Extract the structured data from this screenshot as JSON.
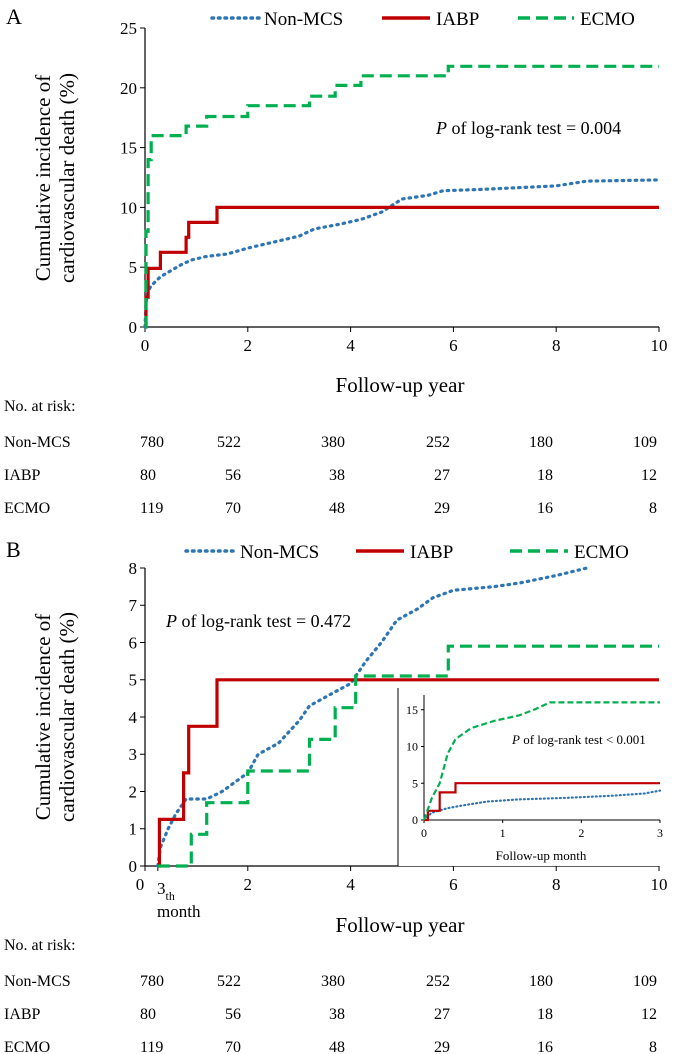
{
  "panels": [
    {
      "id": "A",
      "panel_label": "A",
      "legend": [
        "Non-MCS",
        "IABP",
        "ECMO"
      ],
      "pvalue_prefix": "P",
      "pvalue_text": " of log-rank test = 0.004",
      "risk_title": "No. at risk:",
      "risk_table": [
        {
          "group": "Non-MCS",
          "values": [
            "780",
            "522",
            "380",
            "252",
            "180",
            "109"
          ]
        },
        {
          "group": "IABP",
          "values": [
            "80",
            "56",
            "38",
            "27",
            "18",
            "12"
          ]
        },
        {
          "group": "ECMO",
          "values": [
            "119",
            "70",
            "48",
            "29",
            "16",
            "8"
          ]
        }
      ]
    },
    {
      "id": "B",
      "panel_label": "B",
      "legend": [
        "Non-MCS",
        "IABP",
        "ECMO"
      ],
      "pvalue_prefix": "P",
      "pvalue_text": " of log-rank test = 0.472",
      "extra_tick": {
        "main": "3",
        "sub": "th",
        "below": "month"
      },
      "inset": {
        "pvalue_prefix": "P",
        "pvalue_text": " of log-rank test < 0.001",
        "xlabel": "Follow-up month"
      },
      "risk_title": "No. at risk:",
      "risk_table": [
        {
          "group": "Non-MCS",
          "values": [
            "780",
            "522",
            "380",
            "252",
            "180",
            "109"
          ]
        },
        {
          "group": "IABP",
          "values": [
            "80",
            "56",
            "38",
            "27",
            "18",
            "12"
          ]
        },
        {
          "group": "ECMO",
          "values": [
            "119",
            "70",
            "48",
            "29",
            "16",
            "8"
          ]
        }
      ]
    }
  ],
  "chart_data": [
    {
      "type": "line",
      "title": "A",
      "xlabel": "Follow-up year",
      "ylabel": "Cumulative incidence of cardiovascular death (%)",
      "xlim": [
        0,
        10
      ],
      "ylim": [
        0,
        25
      ],
      "xticks": [
        0,
        2,
        4,
        6,
        8,
        10
      ],
      "yticks": [
        0,
        5,
        10,
        15,
        20,
        25
      ],
      "series": [
        {
          "name": "Non-MCS",
          "color": "#2e75b6",
          "style": "dotted",
          "points": [
            [
              0,
              0
            ],
            [
              0.02,
              2.0
            ],
            [
              0.05,
              2.8
            ],
            [
              0.1,
              3.3
            ],
            [
              0.2,
              3.8
            ],
            [
              0.3,
              4.2
            ],
            [
              0.5,
              4.7
            ],
            [
              0.7,
              5.2
            ],
            [
              0.9,
              5.6
            ],
            [
              1.2,
              5.9
            ],
            [
              1.6,
              6.1
            ],
            [
              2.0,
              6.6
            ],
            [
              2.4,
              7.0
            ],
            [
              3.0,
              7.6
            ],
            [
              3.3,
              8.2
            ],
            [
              3.8,
              8.6
            ],
            [
              4.2,
              9.0
            ],
            [
              4.6,
              9.6
            ],
            [
              5.0,
              10.7
            ],
            [
              5.5,
              11.0
            ],
            [
              5.8,
              11.4
            ],
            [
              6.5,
              11.5
            ],
            [
              7.0,
              11.6
            ],
            [
              8.0,
              11.8
            ],
            [
              8.6,
              12.2
            ],
            [
              10,
              12.3
            ]
          ]
        },
        {
          "name": "IABP",
          "color": "#c00000",
          "style": "solid",
          "step": true,
          "points": [
            [
              0,
              0
            ],
            [
              0.02,
              2.5
            ],
            [
              0.06,
              4.9
            ],
            [
              0.3,
              6.25
            ],
            [
              0.8,
              7.5
            ],
            [
              0.85,
              8.75
            ],
            [
              1.4,
              10.0
            ],
            [
              10,
              10.0
            ]
          ]
        },
        {
          "name": "ECMO",
          "color": "#00b050",
          "style": "dashed",
          "step": true,
          "points": [
            [
              0,
              0
            ],
            [
              0.02,
              8.0
            ],
            [
              0.06,
              14.0
            ],
            [
              0.12,
              16.0
            ],
            [
              0.8,
              16.8
            ],
            [
              1.2,
              17.6
            ],
            [
              2.0,
              18.5
            ],
            [
              3.2,
              19.3
            ],
            [
              3.7,
              20.2
            ],
            [
              4.2,
              21.0
            ],
            [
              5.9,
              21.8
            ],
            [
              10,
              21.8
            ]
          ]
        }
      ]
    },
    {
      "type": "line",
      "title": "B",
      "xlabel": "Follow-up year",
      "ylabel": "Cumulative incidence of cardiovascular death (%)",
      "xlim": [
        0,
        10
      ],
      "ylim": [
        0,
        8
      ],
      "xticks": [
        0,
        2,
        4,
        6,
        8,
        10
      ],
      "yticks": [
        0,
        1,
        2,
        3,
        4,
        5,
        6,
        7,
        8
      ],
      "series": [
        {
          "name": "Non-MCS",
          "color": "#2e75b6",
          "style": "dotted",
          "points": [
            [
              0.25,
              0
            ],
            [
              0.3,
              0.5
            ],
            [
              0.45,
              1.0
            ],
            [
              0.6,
              1.4
            ],
            [
              0.8,
              1.8
            ],
            [
              1.2,
              1.8
            ],
            [
              1.5,
              2.0
            ],
            [
              1.8,
              2.3
            ],
            [
              2.0,
              2.5
            ],
            [
              2.2,
              3.0
            ],
            [
              2.6,
              3.3
            ],
            [
              3.0,
              3.9
            ],
            [
              3.2,
              4.3
            ],
            [
              3.6,
              4.6
            ],
            [
              4.0,
              4.9
            ],
            [
              4.3,
              5.5
            ],
            [
              4.6,
              6.0
            ],
            [
              4.9,
              6.6
            ],
            [
              5.3,
              6.9
            ],
            [
              5.6,
              7.2
            ],
            [
              6.0,
              7.4
            ],
            [
              6.8,
              7.5
            ],
            [
              7.3,
              7.6
            ],
            [
              8.0,
              7.8
            ],
            [
              8.6,
              8.0
            ]
          ]
        },
        {
          "name": "IABP",
          "color": "#c00000",
          "style": "solid",
          "step": true,
          "points": [
            [
              0.25,
              0
            ],
            [
              0.28,
              1.25
            ],
            [
              0.75,
              2.5
            ],
            [
              0.85,
              3.75
            ],
            [
              1.4,
              5.0
            ],
            [
              10,
              5.0
            ]
          ]
        },
        {
          "name": "ECMO",
          "color": "#00b050",
          "style": "dashed",
          "step": true,
          "points": [
            [
              0.25,
              0
            ],
            [
              0.9,
              0.85
            ],
            [
              1.2,
              1.7
            ],
            [
              2.0,
              2.55
            ],
            [
              3.2,
              3.4
            ],
            [
              3.7,
              4.25
            ],
            [
              4.1,
              5.1
            ],
            [
              5.9,
              5.9
            ],
            [
              10,
              5.9
            ]
          ]
        }
      ],
      "inset": {
        "type": "line",
        "xlabel": "Follow-up month",
        "xlim": [
          0,
          3
        ],
        "ylim": [
          0,
          17
        ],
        "xticks": [
          0,
          1,
          2,
          3
        ],
        "yticks": [
          0,
          5,
          10,
          15
        ],
        "series": [
          {
            "name": "Non-MCS",
            "color": "#2e75b6",
            "style": "dotted",
            "points": [
              [
                0,
                0
              ],
              [
                0.1,
                1.0
              ],
              [
                0.3,
                1.6
              ],
              [
                0.5,
                2.0
              ],
              [
                0.8,
                2.5
              ],
              [
                1.2,
                2.8
              ],
              [
                1.8,
                3.0
              ],
              [
                2.4,
                3.3
              ],
              [
                2.8,
                3.6
              ],
              [
                3,
                4.0
              ]
            ]
          },
          {
            "name": "IABP",
            "color": "#c00000",
            "style": "solid",
            "step": true,
            "points": [
              [
                0,
                0
              ],
              [
                0.05,
                1.25
              ],
              [
                0.2,
                3.75
              ],
              [
                0.4,
                5.0
              ],
              [
                3,
                5.0
              ]
            ]
          },
          {
            "name": "ECMO",
            "color": "#00b050",
            "style": "dashed",
            "points": [
              [
                0,
                0
              ],
              [
                0.1,
                3.0
              ],
              [
                0.2,
                5.0
              ],
              [
                0.25,
                7.0
              ],
              [
                0.3,
                9.0
              ],
              [
                0.4,
                11.0
              ],
              [
                0.6,
                12.5
              ],
              [
                0.9,
                13.5
              ],
              [
                1.2,
                14.2
              ],
              [
                1.4,
                15.0
              ],
              [
                1.6,
                16.0
              ],
              [
                3,
                16.0
              ]
            ]
          }
        ]
      }
    }
  ]
}
